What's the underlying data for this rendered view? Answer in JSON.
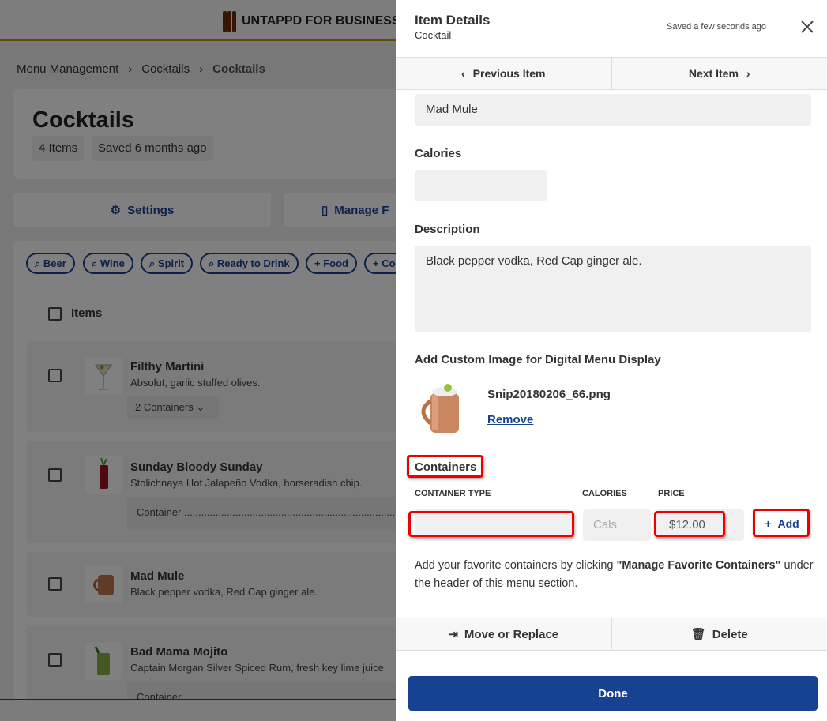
{
  "app": {
    "brand": "UNTAPPD FOR BUSINESS"
  },
  "breadcrumb": [
    "Menu Management",
    "Cocktails",
    "Cocktails"
  ],
  "section": {
    "title": "Cocktails",
    "item_count": "4 Items",
    "saved": "Saved 6 months ago"
  },
  "actions": {
    "settings": "Settings",
    "manage": "Manage F"
  },
  "chips": [
    "Beer",
    "Wine",
    "Spirit",
    "Ready to Drink",
    "Food",
    "Co"
  ],
  "items_header": "Items",
  "items": [
    {
      "name": "Filthy Martini",
      "description": "Absolut, garlic stuffed olives.",
      "containers": "2 Containers"
    },
    {
      "name": "Sunday Bloody Sunday",
      "description": "Stolichnaya Hot Jalapeño Vodka, horseradish chip.",
      "containers": "Container ..........................................................................."
    },
    {
      "name": "Mad Mule",
      "description": "Black pepper vodka, Red Cap ginger ale."
    },
    {
      "name": "Bad Mama Mojito",
      "description": "Captain Morgan Silver Spiced Rum, fresh key lime juice",
      "containers": "Container"
    }
  ],
  "panel": {
    "title": "Item Details",
    "subtitle": "Cocktail",
    "saved": "Saved a few seconds ago",
    "prev": "Previous Item",
    "next": "Next Item",
    "name_value": "Mad Mule",
    "calories_label": "Calories",
    "calories_value": "",
    "description_label": "Description",
    "description_value": "Black pepper vodka, Red Cap ginger ale.",
    "image_label": "Add Custom Image for Digital Menu Display",
    "image_filename": "Snip20180206_66.png",
    "remove": "Remove",
    "containers_label": "Containers",
    "col_type": "CONTAINER TYPE",
    "col_calories": "CALORIES",
    "col_price": "PRICE",
    "container_type_value": "",
    "calories_placeholder": "Cals",
    "price_value": "$12.00",
    "add": "Add",
    "help_prefix": "Add your favorite containers by clicking ",
    "help_bold": "\"Manage Favorite Containers\"",
    "help_suffix": " under the header of this menu section.",
    "move": "Move or Replace",
    "delete": "Delete",
    "done": "Done"
  },
  "colors": {
    "accent": "#174291",
    "highlight": "#ee0000",
    "header_line": "#c8900e"
  }
}
